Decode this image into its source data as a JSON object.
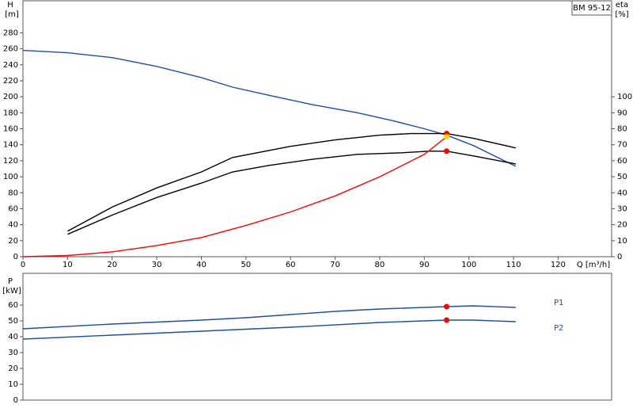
{
  "chart_data": [
    {
      "type": "line",
      "title": "BM 95-12",
      "xlabel": "Q [m³/h]",
      "ylabel": "H",
      "yunit": "[m]",
      "y2label": "eta",
      "y2unit": "[%]",
      "xlim": [
        0,
        132
      ],
      "xticks": [
        0,
        10,
        20,
        30,
        40,
        50,
        60,
        70,
        80,
        90,
        100,
        110,
        120
      ],
      "ylim": [
        0,
        320
      ],
      "yticks": [
        0,
        20,
        40,
        60,
        80,
        100,
        120,
        140,
        160,
        180,
        200,
        220,
        240,
        260,
        280
      ],
      "y2lim": [
        0,
        160
      ],
      "y2ticks": [
        0,
        10,
        20,
        30,
        40,
        50,
        60,
        70,
        80,
        90,
        100
      ],
      "series": [
        {
          "color": "#1f4e9c",
          "x": [
            0,
            10,
            20,
            30,
            40,
            47,
            55,
            65,
            75,
            83,
            90,
            95,
            101,
            105,
            110.5
          ],
          "values": [
            258,
            255,
            249,
            238,
            224,
            212,
            202,
            190,
            180,
            170,
            160,
            152,
            139,
            128,
            113
          ]
        },
        {
          "color": "#000000",
          "axis": "y2",
          "x": [
            10,
            20,
            30,
            40,
            47,
            60,
            70,
            80,
            87,
            95,
            101,
            110.5
          ],
          "values": [
            16,
            31,
            43,
            53,
            62,
            69,
            73,
            76,
            77,
            77,
            74,
            68
          ]
        },
        {
          "color": "#000000",
          "axis": "y2",
          "x": [
            10,
            20,
            30,
            40,
            47,
            55,
            65,
            75,
            85,
            91,
            95,
            101,
            110.5
          ],
          "values": [
            14,
            26,
            37,
            46,
            53,
            57,
            61,
            64,
            65,
            66,
            66,
            63,
            58
          ]
        },
        {
          "color": "#ff0000",
          "x": [
            0,
            10,
            20,
            30,
            40,
            50,
            60,
            70,
            80,
            90,
            95
          ],
          "values": [
            0,
            1.5,
            6,
            14,
            24,
            39,
            56,
            76,
            100,
            128,
            150
          ]
        }
      ],
      "points": [
        {
          "x": 95,
          "y": 154,
          "color": "#ff0000"
        },
        {
          "x": 95,
          "y": 66,
          "axis": "y2",
          "color": "#ff0000"
        },
        {
          "x": 95,
          "y": 150,
          "color": "#ffd700"
        }
      ]
    },
    {
      "type": "line",
      "ylabel": "P",
      "yunit": "[kW]",
      "xlim": [
        0,
        132
      ],
      "ylim": [
        0,
        80
      ],
      "yticks": [
        0,
        10,
        20,
        30,
        40,
        50,
        60
      ],
      "series": [
        {
          "name": "P1",
          "color": "#1f4e9c",
          "x": [
            0,
            20,
            40,
            50,
            60,
            70,
            80,
            95,
            101,
            110.5
          ],
          "values": [
            45,
            48,
            50.5,
            52,
            54,
            56,
            57.5,
            59,
            59.5,
            58.5
          ]
        },
        {
          "name": "P2",
          "color": "#1f4e9c",
          "x": [
            0,
            20,
            40,
            60,
            80,
            95,
            101,
            110.5
          ],
          "values": [
            38.5,
            41,
            43.5,
            46,
            49,
            50.5,
            50.5,
            49.5
          ]
        }
      ],
      "points": [
        {
          "x": 95,
          "y": 59,
          "color": "#ff0000"
        },
        {
          "x": 95,
          "y": 50.5,
          "color": "#ff0000"
        }
      ]
    }
  ]
}
